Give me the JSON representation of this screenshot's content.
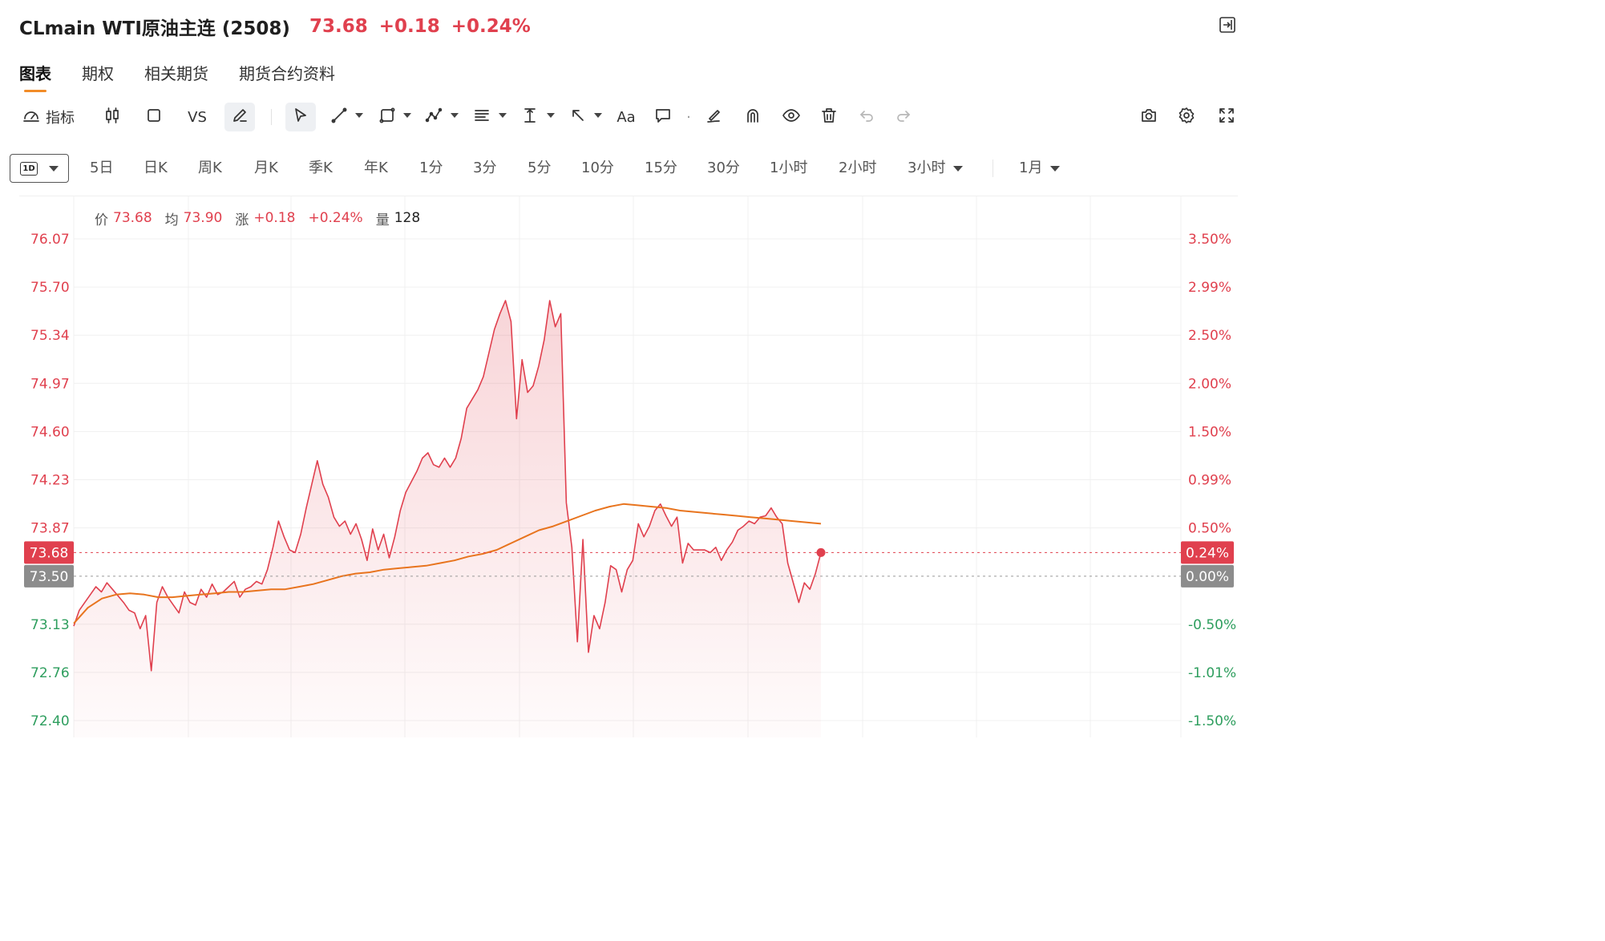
{
  "header": {
    "symbol": "CLmain WTI原油主连 (2508)",
    "price": "73.68",
    "change": "+0.18",
    "change_pct": "+0.24%",
    "up_color": "#e0404e",
    "down_color": "#2e9e5e"
  },
  "tabs": [
    "图表",
    "期权",
    "相关期货",
    "期货合约资料"
  ],
  "toolbar": {
    "indicator_label": "指标",
    "vs_label": "VS",
    "text_label": "Aa",
    "icons": [
      "speedometer-icon",
      "candlestick-icon",
      "square-icon",
      "pencil-icon",
      "cursor-icon",
      "line-tool-icon",
      "shape-tool-icon",
      "pattern-tool-icon",
      "fib-tool-icon",
      "measure-tool-icon",
      "arrow-tool-icon",
      "text-tool-icon",
      "comment-icon",
      "brush-icon",
      "magnet-icon",
      "eye-icon",
      "trash-icon",
      "undo-icon",
      "redo-icon",
      "camera-icon",
      "settings-icon",
      "fullscreen-icon"
    ]
  },
  "periods": {
    "selected_badge": "1D",
    "items": [
      "5日",
      "日K",
      "周K",
      "月K",
      "季K",
      "年K",
      "1分",
      "3分",
      "5分",
      "10分",
      "15分",
      "30分",
      "1小时",
      "2小时",
      "3小时"
    ],
    "month_select": "1月"
  },
  "legend": {
    "price_label": "价",
    "price": "73.68",
    "avg_label": "均",
    "avg": "73.90",
    "chg_label": "涨",
    "chg": "+0.18",
    "chg_pct": "+0.24%",
    "vol_label": "量",
    "vol": "128"
  },
  "chart_data": {
    "type": "line",
    "prev_close": 73.5,
    "ylim": [
      72.4,
      76.07
    ],
    "y_ticks": [
      "76.07",
      "75.70",
      "75.34",
      "74.97",
      "74.60",
      "74.23",
      "73.87",
      "73.50",
      "73.13",
      "72.76",
      "72.40"
    ],
    "pct_ticks": [
      "3.50%",
      "2.99%",
      "2.50%",
      "2.00%",
      "1.50%",
      "0.99%",
      "0.50%",
      "0.00%",
      "-0.50%",
      "-1.01%",
      "-1.50%"
    ],
    "current_label": "73.68",
    "current_pct_label": "0.24%",
    "prev_label": "73.50",
    "prev_pct_label": "0.00%",
    "series": [
      {
        "values": [
          73.12,
          73.24,
          73.3,
          73.36,
          73.42,
          73.38,
          73.45,
          73.4,
          73.35,
          73.3,
          73.24,
          73.22,
          73.1,
          73.2,
          72.78,
          73.3,
          73.42,
          73.34,
          73.28,
          73.22,
          73.38,
          73.3,
          73.28,
          73.4,
          73.34,
          73.44,
          73.36,
          73.38,
          73.42,
          73.46,
          73.34,
          73.4,
          73.42,
          73.46,
          73.44,
          73.55,
          73.72,
          73.92,
          73.8,
          73.7,
          73.68,
          73.82,
          74.02,
          74.2,
          74.38,
          74.2,
          74.1,
          73.95,
          73.88,
          73.92,
          73.82,
          73.9,
          73.78,
          73.62,
          73.86,
          73.7,
          73.82,
          73.64,
          73.8,
          74.0,
          74.14,
          74.22,
          74.3,
          74.4,
          74.44,
          74.35,
          74.33,
          74.4,
          74.33,
          74.4,
          74.55,
          74.78,
          74.85,
          74.92,
          75.02,
          75.2,
          75.38,
          75.5,
          75.6,
          75.44,
          74.7,
          75.15,
          74.9,
          74.95,
          75.1,
          75.3,
          75.6,
          75.4,
          75.5,
          74.06,
          73.72,
          73.0,
          73.78,
          72.92,
          73.2,
          73.1,
          73.3,
          73.58,
          73.55,
          73.38,
          73.55,
          73.62,
          73.9,
          73.8,
          73.88,
          74.0,
          74.05,
          73.96,
          73.88,
          73.95,
          73.6,
          73.75,
          73.7,
          73.7,
          73.7,
          73.68,
          73.72,
          73.62,
          73.7,
          73.76,
          73.85,
          73.88,
          73.92,
          73.9,
          73.95,
          73.96,
          74.02,
          73.95,
          73.9,
          73.6,
          73.45,
          73.3,
          73.45,
          73.4,
          73.52,
          73.68
        ]
      },
      {
        "values": [
          73.14,
          73.26,
          73.33,
          73.36,
          73.37,
          73.36,
          73.34,
          73.34,
          73.35,
          73.36,
          73.37,
          73.38,
          73.38,
          73.39,
          73.4,
          73.4,
          73.42,
          73.44,
          73.47,
          73.5,
          73.52,
          73.53,
          73.55,
          73.56,
          73.57,
          73.58,
          73.6,
          73.62,
          73.65,
          73.67,
          73.7,
          73.75,
          73.8,
          73.85,
          73.88,
          73.92,
          73.96,
          74.0,
          74.03,
          74.05,
          74.04,
          74.03,
          74.02,
          74.0,
          73.99,
          73.98,
          73.97,
          73.96,
          73.95,
          73.94,
          73.93,
          73.92,
          73.91,
          73.9
        ]
      }
    ],
    "grid": true
  }
}
